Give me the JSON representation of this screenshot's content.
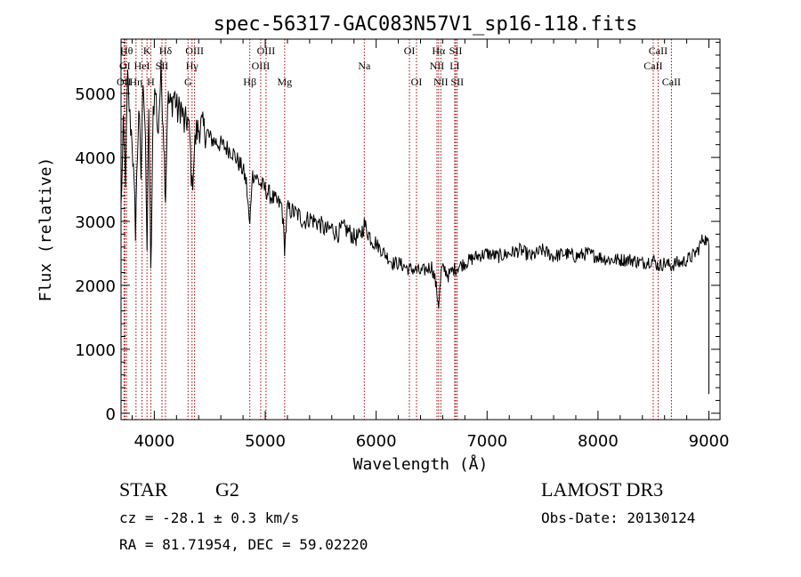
{
  "chart_data": {
    "type": "line",
    "title": "spec-56317-GAC083N57V1_sp16-118.fits",
    "xlabel": "Wavelength (Å)",
    "ylabel": "Flux (relative)",
    "xlim": [
      3700,
      9100
    ],
    "ylim": [
      -100,
      5850
    ],
    "xticks": [
      4000,
      5000,
      6000,
      7000,
      8000,
      9000
    ],
    "yticks": [
      0,
      1000,
      2000,
      3000,
      4000,
      5000
    ],
    "grid": false,
    "line_color": "#000000",
    "marker_color": "#aa0000",
    "series": [
      {
        "name": "flux",
        "x": [
          3700,
          3720,
          3740,
          3760,
          3780,
          3800,
          3830,
          3860,
          3880,
          3900,
          3920,
          3934,
          3950,
          3968,
          3990,
          4010,
          4030,
          4060,
          4080,
          4101,
          4120,
          4150,
          4180,
          4210,
          4240,
          4270,
          4300,
          4320,
          4340,
          4360,
          4380,
          4420,
          4460,
          4500,
          4550,
          4600,
          4650,
          4700,
          4750,
          4800,
          4830,
          4861,
          4880,
          4900,
          4950,
          5000,
          5050,
          5100,
          5150,
          5175,
          5200,
          5250,
          5300,
          5350,
          5400,
          5450,
          5500,
          5550,
          5600,
          5650,
          5700,
          5750,
          5800,
          5850,
          5893,
          5950,
          6000,
          6050,
          6100,
          6150,
          6200,
          6250,
          6300,
          6350,
          6400,
          6450,
          6500,
          6530,
          6563,
          6590,
          6620,
          6650,
          6700,
          6750,
          6800,
          6900,
          7000,
          7100,
          7200,
          7300,
          7400,
          7500,
          7600,
          7700,
          7800,
          7900,
          8000,
          8100,
          8200,
          8300,
          8400,
          8498,
          8542,
          8600,
          8662,
          8700,
          8750,
          8800,
          8850,
          8900,
          8950,
          8980,
          9000
        ],
        "y": [
          3200,
          4400,
          3700,
          5200,
          4600,
          4300,
          2900,
          4800,
          3700,
          5300,
          4400,
          2300,
          4900,
          2100,
          4700,
          5200,
          4300,
          5300,
          4600,
          3400,
          4900,
          4800,
          5000,
          4700,
          4800,
          4500,
          4600,
          4300,
          3500,
          4100,
          4400,
          4500,
          4400,
          4300,
          4250,
          4200,
          4150,
          4100,
          3950,
          3800,
          3600,
          2900,
          3700,
          3750,
          3600,
          3500,
          3400,
          3300,
          3250,
          2600,
          3200,
          3150,
          3100,
          3000,
          3050,
          3000,
          2950,
          2850,
          2900,
          2800,
          2900,
          2850,
          2750,
          2750,
          2950,
          2750,
          2650,
          2550,
          2450,
          2350,
          2350,
          2300,
          2250,
          2250,
          2200,
          2250,
          2300,
          2100,
          1700,
          2250,
          2250,
          2150,
          2250,
          2300,
          2350,
          2450,
          2500,
          2450,
          2500,
          2550,
          2450,
          2550,
          2450,
          2500,
          2450,
          2500,
          2450,
          2400,
          2400,
          2400,
          2350,
          2400,
          2300,
          2350,
          2300,
          2350,
          2350,
          2400,
          2450,
          2550,
          2750,
          2700,
          2600
        ]
      }
    ],
    "spectral_lines": [
      {
        "label": "OII",
        "x": 3727,
        "row": 3
      },
      {
        "label": "OI",
        "x": 3735,
        "row": 2
      },
      {
        "label": "Hθ",
        "x": 3750,
        "row": 1
      },
      {
        "label": "Hη",
        "x": 3835,
        "row": 3
      },
      {
        "label": "HeI",
        "x": 3889,
        "row": 2
      },
      {
        "label": "K",
        "x": 3934,
        "row": 1
      },
      {
        "label": "SII",
        "x": 4069,
        "row": 2
      },
      {
        "label": "H",
        "x": 3968,
        "row": 3
      },
      {
        "label": "Hδ",
        "x": 4101,
        "row": 1
      },
      {
        "label": "OIII",
        "x": 4363,
        "row": 1
      },
      {
        "label": "Hγ",
        "x": 4340,
        "row": 2
      },
      {
        "label": "G",
        "x": 4304,
        "row": 3
      },
      {
        "label": "Hβ",
        "x": 4861,
        "row": 3
      },
      {
        "label": "OIII",
        "x": 4959,
        "row": 2
      },
      {
        "label": "OIII",
        "x": 5007,
        "row": 1
      },
      {
        "label": "Mg",
        "x": 5175,
        "row": 3
      },
      {
        "label": "Na",
        "x": 5893,
        "row": 2
      },
      {
        "label": "OI",
        "x": 6300,
        "row": 1
      },
      {
        "label": "OI",
        "x": 6364,
        "row": 3
      },
      {
        "label": "NII",
        "x": 6548,
        "row": 2
      },
      {
        "label": "Hα",
        "x": 6563,
        "row": 1
      },
      {
        "label": "NII",
        "x": 6583,
        "row": 3
      },
      {
        "label": "SII",
        "x": 6717,
        "row": 1
      },
      {
        "label": "SII",
        "x": 6731,
        "row": 3
      },
      {
        "label": "LI",
        "x": 6708,
        "row": 2
      },
      {
        "label": "CaII",
        "x": 8498,
        "row": 2
      },
      {
        "label": "CaII",
        "x": 8542,
        "row": 1
      },
      {
        "label": "CaII",
        "x": 8662,
        "row": 3
      }
    ]
  },
  "info": {
    "class": "STAR",
    "subclass": "G2",
    "survey": "LAMOST DR3",
    "cz": "cz = -28.1 ± 0.3 km/s",
    "obs_date": "Obs-Date: 20130124",
    "coords": "RA =  81.71954, DEC =  59.02220"
  }
}
